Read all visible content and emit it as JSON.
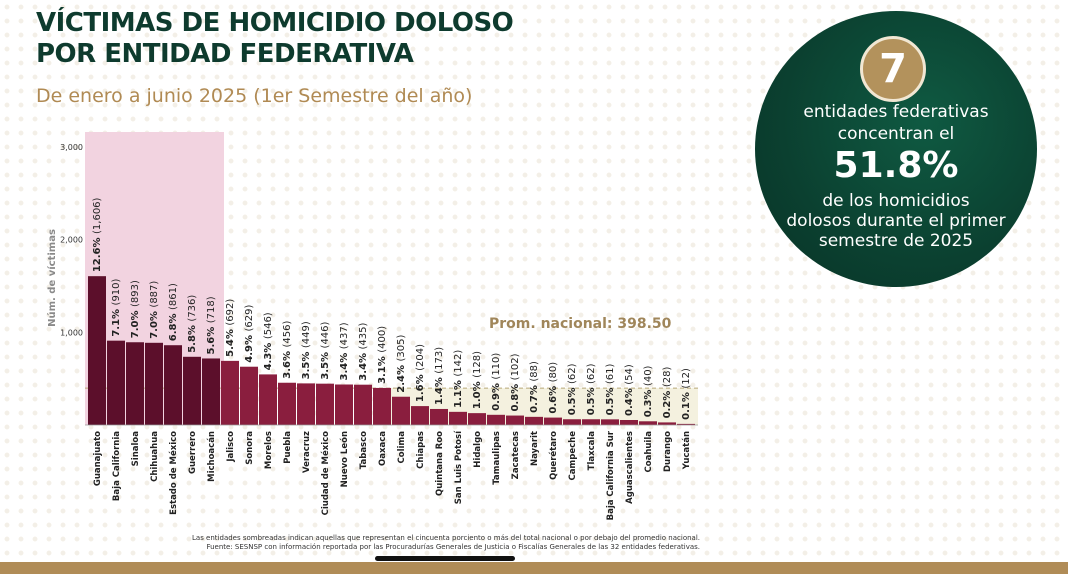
{
  "title": {
    "line1": "VÍCTIMAS DE HOMICIDIO DOLOSO",
    "line2": "POR ENTIDAD FEDERATIVA"
  },
  "subtitle": "De enero a junio 2025 (1er Semestre del año)",
  "info": {
    "number": "7",
    "line1": "entidades federativas",
    "line2": "concentran el",
    "percent": "51.8%",
    "line3": "de los homicidios",
    "line4": "dolosos durante el primer",
    "line5": "semestre de 2025"
  },
  "footnote": {
    "line1": "Las entidades sombreadas indican aquellas que representan el cincuenta porciento o más del total nacional o por debajo del promedio nacional.",
    "line2": "Fuente: SESNSP con información reportada por las Procuradurías Generales de Justicia o Fiscalías Generales de las 32 entidades federativas."
  },
  "colors": {
    "dark_bar": "#5c0f2b",
    "bar": "#8a1e3e",
    "shade_top": "#f2d3e0",
    "shade_bottom": "#f4f1df",
    "avg_text": "#a0865a",
    "title": "#0e3b2e",
    "circle": "#0b4030",
    "badge": "#b3925c"
  },
  "chart_data": {
    "type": "bar",
    "ylabel": "Núm. de víctimas",
    "ylim": [
      0,
      3000
    ],
    "yticks": [
      "3,000",
      "2,000",
      "1,000"
    ],
    "yticks_values": [
      3000,
      2000,
      1000
    ],
    "average_label": "Prom. nacional: 398.50",
    "average": 398.5,
    "highlight_top_count": 7,
    "highlight_below_average_from": "Colima",
    "categories": [
      "Guanajuato",
      "Baja California",
      "Sinaloa",
      "Chihuahua",
      "Estado de México",
      "Guerrero",
      "Michoacán",
      "Jalisco",
      "Sonora",
      "Morelos",
      "Puebla",
      "Veracruz",
      "Ciudad de México",
      "Nuevo León",
      "Tabasco",
      "Oaxaca",
      "Colima",
      "Chiapas",
      "Quintana Roo",
      "San Luis Potosí",
      "Hidalgo",
      "Tamaulipas",
      "Zacatecas",
      "Nayarit",
      "Querétaro",
      "Campeche",
      "Tlaxcala",
      "Baja California Sur",
      "Aguascalientes",
      "Coahuila",
      "Durango",
      "Yucatán"
    ],
    "values": [
      1606,
      910,
      893,
      887,
      861,
      736,
      718,
      692,
      629,
      546,
      456,
      449,
      446,
      437,
      435,
      400,
      305,
      204,
      173,
      142,
      128,
      110,
      102,
      88,
      80,
      62,
      62,
      61,
      54,
      40,
      28,
      12
    ],
    "pct_labels": [
      "12.6%",
      "7.1%",
      "7.0%",
      "7.0%",
      "6.8%",
      "5.8%",
      "5.6%",
      "5.4%",
      "4.9%",
      "4.3%",
      "3.6%",
      "3.5%",
      "3.5%",
      "3.4%",
      "3.4%",
      "3.1%",
      "2.4%",
      "1.6%",
      "1.4%",
      "1.1%",
      "1.0%",
      "0.9%",
      "0.8%",
      "0.7%",
      "0.6%",
      "0.5%",
      "0.5%",
      "0.5%",
      "0.4%",
      "0.3%",
      "0.2%",
      "0.1%"
    ],
    "count_labels": [
      "(1,606)",
      "(910)",
      "(893)",
      "(887)",
      "(861)",
      "(736)",
      "(718)",
      "(692)",
      "(629)",
      "(546)",
      "(456)",
      "(449)",
      "(446)",
      "(437)",
      "(435)",
      "(400)",
      "(305)",
      "(204)",
      "(173)",
      "(142)",
      "(128)",
      "(110)",
      "(102)",
      "(88)",
      "(80)",
      "(62)",
      "(62)",
      "(61)",
      "(54)",
      "(40)",
      "(28)",
      "(12)"
    ]
  }
}
